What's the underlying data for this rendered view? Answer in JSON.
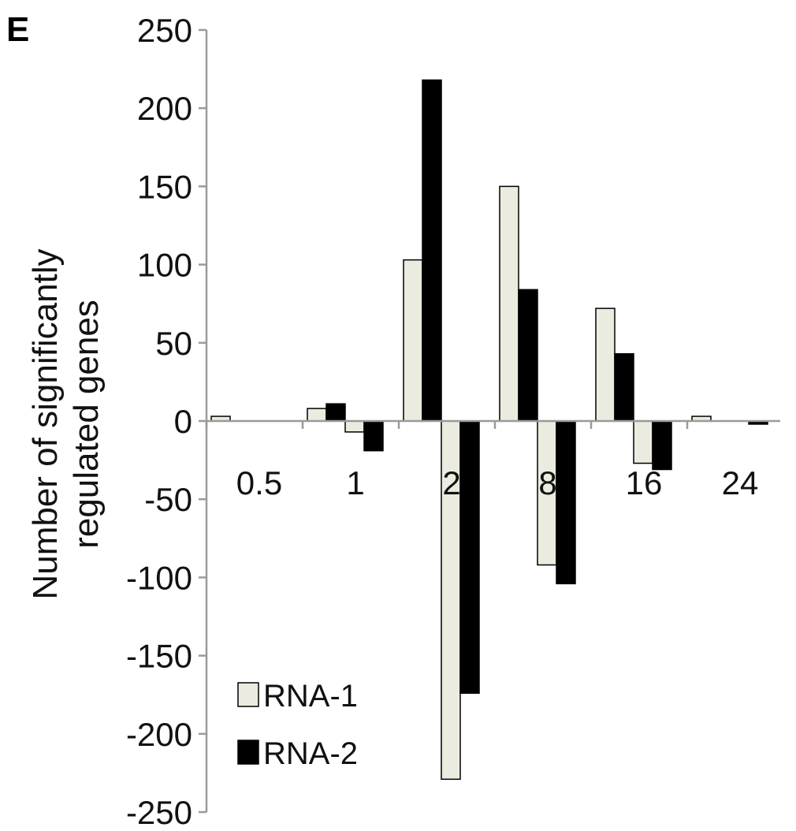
{
  "chart_data": {
    "type": "bar",
    "panel_label": "E",
    "title": "",
    "xlabel": "",
    "ylabel_line1": "Number of significantly",
    "ylabel_line2": "regulated genes",
    "categories": [
      "0.5",
      "1",
      "2",
      "8",
      "16",
      "24"
    ],
    "yticks": [
      "250",
      "200",
      "150",
      "100",
      "50",
      "0",
      "-50",
      "-100",
      "-150",
      "-200",
      "-250"
    ],
    "ylim": [
      -250,
      250
    ],
    "legend_position": "bottom-left",
    "series": [
      {
        "name": "RNA-1",
        "color": "#ebebdf",
        "up": [
          3,
          8,
          103,
          150,
          72,
          3
        ],
        "down": [
          0,
          -7,
          -229,
          -92,
          -27,
          0
        ]
      },
      {
        "name": "RNA-2",
        "color": "#000000",
        "up": [
          0,
          11,
          218,
          84,
          43,
          0
        ],
        "down": [
          0,
          -19,
          -174,
          -104,
          -31,
          -2
        ]
      }
    ]
  }
}
